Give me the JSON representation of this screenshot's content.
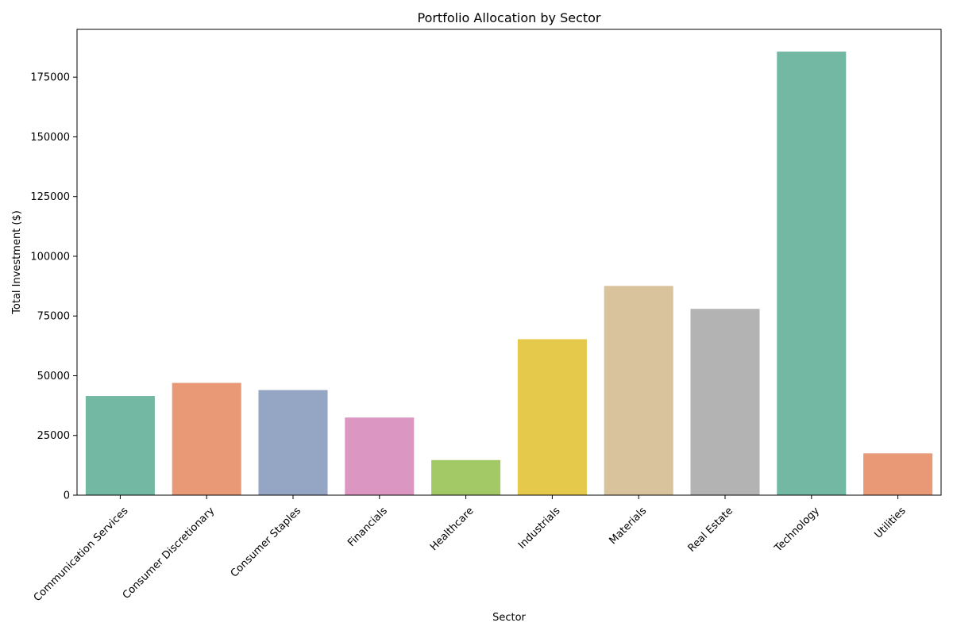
{
  "chart_data": {
    "type": "bar",
    "title": "Portfolio Allocation by Sector",
    "xlabel": "Sector",
    "ylabel": "Total Investment ($)",
    "categories": [
      "Communication Services",
      "Consumer Discretionary",
      "Consumer Staples",
      "Financials",
      "Healthcare",
      "Industrials",
      "Materials",
      "Real Estate",
      "Technology",
      "Utilities"
    ],
    "values": [
      41500,
      47000,
      44000,
      32500,
      14700,
      65300,
      87600,
      78000,
      185700,
      17500
    ],
    "colors": [
      "#72b8a2",
      "#ea9977",
      "#95a5c4",
      "#dc96c2",
      "#a3c966",
      "#e4c94a",
      "#d9c39c",
      "#b3b3b3",
      "#72b8a2",
      "#ea9977"
    ],
    "ylim": [
      0,
      195000
    ],
    "yticks": [
      "0",
      "25000",
      "50000",
      "75000",
      "100000",
      "125000",
      "150000",
      "175000"
    ],
    "grid": false,
    "legend": "none"
  }
}
